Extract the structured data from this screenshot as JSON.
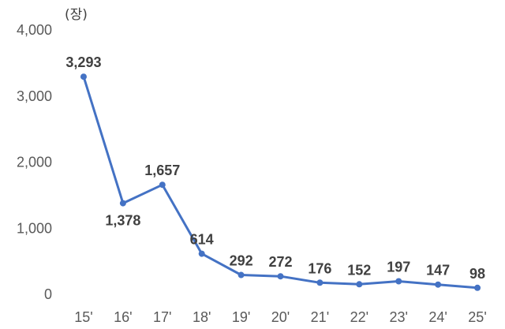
{
  "chart_data": {
    "type": "line",
    "unit_label": "(장)",
    "categories": [
      "15'",
      "16'",
      "17'",
      "18'",
      "19'",
      "20'",
      "21'",
      "22'",
      "23'",
      "24'",
      "25'"
    ],
    "values": [
      3293,
      1378,
      1657,
      614,
      292,
      272,
      176,
      152,
      197,
      147,
      98
    ],
    "data_labels": [
      "3,293",
      "1,378",
      "1,657",
      "614",
      "292",
      "272",
      "176",
      "152",
      "197",
      "147",
      "98"
    ],
    "ylim": [
      0,
      4000
    ],
    "yticks": [
      0,
      1000,
      2000,
      3000,
      4000
    ],
    "ytick_labels": [
      "0",
      "1,000",
      "2,000",
      "3,000",
      "4,000"
    ],
    "grid": false,
    "line_color": "#4472C4"
  }
}
